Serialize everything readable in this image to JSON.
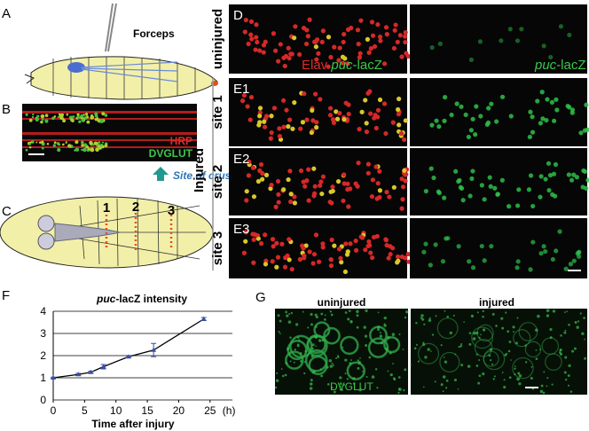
{
  "panel_labels": [
    "A",
    "B",
    "C",
    "D",
    "E1",
    "E2",
    "E3",
    "F",
    "G"
  ],
  "panel_a": {
    "forceps": "Forceps"
  },
  "panel_b": {
    "hrp": "HRP",
    "dvglut": "DVGLUT",
    "site_of_crush": "Site of crush"
  },
  "panel_c": {
    "sites": [
      "1",
      "2",
      "3"
    ]
  },
  "panel_de": {
    "injured": "Injured",
    "row_labels": [
      "uninjured",
      "site 1",
      "site 2",
      "site 3"
    ],
    "merge_label": {
      "elav": "Elav",
      "italic": "puc",
      "rest": "-lacZ"
    },
    "single_label": {
      "italic": "puc",
      "rest": "-lacZ"
    }
  },
  "chart_data": {
    "type": "line",
    "title_italic": "puc",
    "title_rest": "-lacZ intensity",
    "x_label": "Time after injury",
    "x_unit": "(h)",
    "x": [
      0,
      4,
      6,
      8,
      12,
      16,
      24
    ],
    "values": [
      1.0,
      1.15,
      1.25,
      1.5,
      1.95,
      2.25,
      3.65
    ],
    "errors": [
      0.03,
      0.05,
      0.05,
      0.1,
      0.03,
      0.3,
      0.07
    ],
    "color": "#3a4fa8",
    "xlim": [
      0,
      28
    ],
    "ylim": [
      0,
      4
    ],
    "xticks": [
      0,
      5,
      10,
      15,
      20,
      25
    ],
    "yticks": [
      0,
      1,
      2,
      3,
      4
    ],
    "grid": true
  },
  "panel_g": {
    "headers": [
      "uninjured",
      "injured"
    ],
    "stain": "DVGLUT"
  }
}
